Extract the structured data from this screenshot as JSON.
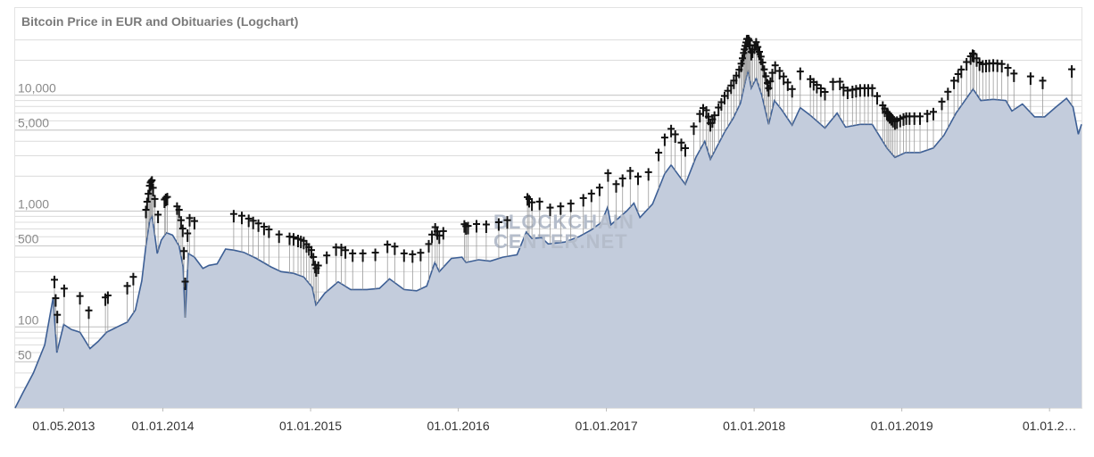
{
  "colors": {
    "line": "#3d5f95",
    "area": "#c3ccdc",
    "grid": "#dcdcdc",
    "cross": "#111111",
    "stem": "#9a9a9a"
  },
  "chart_data": {
    "type": "area",
    "title": "Bitcoin Price in EUR and Obituaries (Logchart)",
    "watermark": [
      "BLOCKCHAIN",
      "CENTER.NET"
    ],
    "yscale": "log",
    "ylim": [
      20,
      35000
    ],
    "yticks": [
      {
        "value": 50,
        "label": "50"
      },
      {
        "value": 100,
        "label": "100"
      },
      {
        "value": 500,
        "label": "500"
      },
      {
        "value": 1000,
        "label": "1,000"
      },
      {
        "value": 5000,
        "label": "5,000"
      },
      {
        "value": 10000,
        "label": "10,000"
      }
    ],
    "xlim": [
      "2013-01-01",
      "2020-03-20"
    ],
    "xticks": [
      {
        "date": "2013-05-01",
        "label": "01.05.2013"
      },
      {
        "date": "2014-01-01",
        "label": "01.01.2014"
      },
      {
        "date": "2015-01-01",
        "label": "01.01.2015"
      },
      {
        "date": "2016-01-01",
        "label": "01.01.2016"
      },
      {
        "date": "2017-01-01",
        "label": "01.01.2017"
      },
      {
        "date": "2018-01-01",
        "label": "01.01.2018"
      },
      {
        "date": "2019-01-01",
        "label": "01.01.2019"
      },
      {
        "date": "2020-01-01",
        "label": "01.01.2…"
      }
    ],
    "series": [
      {
        "points": [
          [
            "2013-01-01",
            20
          ],
          [
            "2013-01-20",
            27
          ],
          [
            "2013-02-15",
            40
          ],
          [
            "2013-03-15",
            70
          ],
          [
            "2013-04-05",
            180
          ],
          [
            "2013-04-09",
            110
          ],
          [
            "2013-04-14",
            60
          ],
          [
            "2013-05-01",
            105
          ],
          [
            "2013-05-20",
            95
          ],
          [
            "2013-06-10",
            90
          ],
          [
            "2013-07-05",
            65
          ],
          [
            "2013-07-25",
            75
          ],
          [
            "2013-08-15",
            90
          ],
          [
            "2013-09-10",
            100
          ],
          [
            "2013-10-05",
            110
          ],
          [
            "2013-10-25",
            140
          ],
          [
            "2013-11-10",
            250
          ],
          [
            "2013-11-20",
            500
          ],
          [
            "2013-11-30",
            850
          ],
          [
            "2013-12-05",
            900
          ],
          [
            "2013-12-10",
            700
          ],
          [
            "2013-12-18",
            430
          ],
          [
            "2013-12-28",
            560
          ],
          [
            "2014-01-10",
            650
          ],
          [
            "2014-01-25",
            620
          ],
          [
            "2014-02-10",
            500
          ],
          [
            "2014-02-20",
            330
          ],
          [
            "2014-02-25",
            120
          ],
          [
            "2014-03-05",
            430
          ],
          [
            "2014-03-20",
            400
          ],
          [
            "2014-04-10",
            320
          ],
          [
            "2014-04-25",
            340
          ],
          [
            "2014-05-15",
            350
          ],
          [
            "2014-06-05",
            470
          ],
          [
            "2014-06-25",
            460
          ],
          [
            "2014-07-20",
            440
          ],
          [
            "2014-08-20",
            390
          ],
          [
            "2014-09-25",
            330
          ],
          [
            "2014-10-20",
            300
          ],
          [
            "2014-11-20",
            290
          ],
          [
            "2014-12-15",
            270
          ],
          [
            "2015-01-05",
            220
          ],
          [
            "2015-01-14",
            155
          ],
          [
            "2015-02-05",
            195
          ],
          [
            "2015-03-10",
            245
          ],
          [
            "2015-04-10",
            210
          ],
          [
            "2015-05-20",
            210
          ],
          [
            "2015-06-20",
            215
          ],
          [
            "2015-07-15",
            260
          ],
          [
            "2015-08-20",
            210
          ],
          [
            "2015-09-20",
            205
          ],
          [
            "2015-10-15",
            225
          ],
          [
            "2015-11-04",
            360
          ],
          [
            "2015-11-15",
            300
          ],
          [
            "2015-12-15",
            390
          ],
          [
            "2016-01-10",
            400
          ],
          [
            "2016-01-20",
            360
          ],
          [
            "2016-02-20",
            380
          ],
          [
            "2016-03-20",
            370
          ],
          [
            "2016-04-20",
            400
          ],
          [
            "2016-05-25",
            420
          ],
          [
            "2016-06-17",
            660
          ],
          [
            "2016-07-01",
            580
          ],
          [
            "2016-07-25",
            590
          ],
          [
            "2016-08-10",
            520
          ],
          [
            "2016-09-20",
            540
          ],
          [
            "2016-10-25",
            600
          ],
          [
            "2016-11-25",
            690
          ],
          [
            "2016-12-20",
            800
          ],
          [
            "2017-01-04",
            1080
          ],
          [
            "2017-01-12",
            760
          ],
          [
            "2017-02-20",
            1000
          ],
          [
            "2017-03-10",
            1170
          ],
          [
            "2017-03-25",
            880
          ],
          [
            "2017-04-25",
            1150
          ],
          [
            "2017-05-25",
            2100
          ],
          [
            "2017-06-10",
            2500
          ],
          [
            "2017-07-15",
            1700
          ],
          [
            "2017-08-10",
            2900
          ],
          [
            "2017-09-01",
            4000
          ],
          [
            "2017-09-15",
            2800
          ],
          [
            "2017-10-20",
            4800
          ],
          [
            "2017-11-10",
            6300
          ],
          [
            "2017-11-28",
            8500
          ],
          [
            "2017-12-10",
            13000
          ],
          [
            "2017-12-17",
            16500
          ],
          [
            "2017-12-25",
            11500
          ],
          [
            "2018-01-06",
            14000
          ],
          [
            "2018-01-20",
            10000
          ],
          [
            "2018-02-06",
            5600
          ],
          [
            "2018-02-20",
            9000
          ],
          [
            "2018-03-10",
            7500
          ],
          [
            "2018-04-05",
            5500
          ],
          [
            "2018-04-25",
            7800
          ],
          [
            "2018-05-20",
            6700
          ],
          [
            "2018-06-25",
            5200
          ],
          [
            "2018-07-25",
            7000
          ],
          [
            "2018-08-15",
            5300
          ],
          [
            "2018-09-20",
            5600
          ],
          [
            "2018-10-20",
            5600
          ],
          [
            "2018-11-25",
            3500
          ],
          [
            "2018-12-15",
            2900
          ],
          [
            "2019-01-10",
            3200
          ],
          [
            "2019-02-15",
            3200
          ],
          [
            "2019-03-20",
            3500
          ],
          [
            "2019-04-15",
            4500
          ],
          [
            "2019-05-15",
            7000
          ],
          [
            "2019-06-26",
            11300
          ],
          [
            "2019-07-15",
            9000
          ],
          [
            "2019-08-15",
            9200
          ],
          [
            "2019-09-15",
            9000
          ],
          [
            "2019-09-30",
            7300
          ],
          [
            "2019-10-26",
            8400
          ],
          [
            "2019-11-25",
            6500
          ],
          [
            "2019-12-20",
            6500
          ],
          [
            "2020-01-15",
            7800
          ],
          [
            "2020-02-12",
            9400
          ],
          [
            "2020-02-28",
            7900
          ],
          [
            "2020-03-12",
            4600
          ],
          [
            "2020-03-20",
            5600
          ]
        ]
      }
    ],
    "obituaries": [
      "2013-04-08",
      "2013-04-11",
      "2013-04-15",
      "2013-05-02",
      "2013-06-10",
      "2013-07-02",
      "2013-08-12",
      "2013-08-18",
      "2013-10-05",
      "2013-10-20",
      "2013-11-20",
      "2013-11-23",
      "2013-11-26",
      "2013-11-29",
      "2013-12-01",
      "2013-12-03",
      "2013-12-05",
      "2013-12-08",
      "2013-12-12",
      "2013-12-20",
      "2014-01-05",
      "2014-01-08",
      "2014-01-12",
      "2014-02-05",
      "2014-02-10",
      "2014-02-15",
      "2014-02-19",
      "2014-02-22",
      "2014-02-25",
      "2014-03-03",
      "2014-03-08",
      "2014-03-20",
      "2014-06-25",
      "2014-07-15",
      "2014-08-01",
      "2014-08-12",
      "2014-08-25",
      "2014-09-08",
      "2014-09-20",
      "2014-10-15",
      "2014-11-10",
      "2014-11-20",
      "2014-12-01",
      "2014-12-08",
      "2014-12-15",
      "2014-12-22",
      "2014-12-28",
      "2015-01-03",
      "2015-01-08",
      "2015-01-12",
      "2015-01-15",
      "2015-01-20",
      "2015-02-10",
      "2015-03-05",
      "2015-03-18",
      "2015-03-28",
      "2015-04-15",
      "2015-05-10",
      "2015-06-10",
      "2015-07-10",
      "2015-07-28",
      "2015-08-20",
      "2015-09-10",
      "2015-09-30",
      "2015-10-20",
      "2015-10-28",
      "2015-11-05",
      "2015-11-10",
      "2015-11-15",
      "2015-11-25",
      "2016-01-16",
      "2016-01-20",
      "2016-01-25",
      "2016-02-15",
      "2016-03-10",
      "2016-04-10",
      "2016-05-01",
      "2016-06-20",
      "2016-06-24",
      "2016-07-01",
      "2016-07-20",
      "2016-08-15",
      "2016-09-10",
      "2016-10-05",
      "2016-11-05",
      "2016-11-25",
      "2016-12-15",
      "2017-01-05",
      "2017-01-25",
      "2017-02-10",
      "2017-03-01",
      "2017-03-20",
      "2017-04-15",
      "2017-05-10",
      "2017-05-25",
      "2017-06-10",
      "2017-06-20",
      "2017-07-05",
      "2017-07-15",
      "2017-08-05",
      "2017-08-20",
      "2017-08-28",
      "2017-09-05",
      "2017-09-10",
      "2017-09-15",
      "2017-09-20",
      "2017-09-25",
      "2017-10-05",
      "2017-10-12",
      "2017-10-20",
      "2017-10-28",
      "2017-11-05",
      "2017-11-12",
      "2017-11-18",
      "2017-11-25",
      "2017-11-30",
      "2017-12-03",
      "2017-12-06",
      "2017-12-08",
      "2017-12-10",
      "2017-12-12",
      "2017-12-14",
      "2017-12-16",
      "2017-12-18",
      "2017-12-20",
      "2017-12-22",
      "2017-12-25",
      "2017-12-28",
      "2018-01-02",
      "2018-01-06",
      "2018-01-10",
      "2018-01-14",
      "2018-01-18",
      "2018-01-22",
      "2018-01-26",
      "2018-01-30",
      "2018-02-03",
      "2018-02-06",
      "2018-02-10",
      "2018-02-15",
      "2018-02-22",
      "2018-03-05",
      "2018-03-15",
      "2018-03-25",
      "2018-04-05",
      "2018-04-25",
      "2018-05-20",
      "2018-05-28",
      "2018-06-05",
      "2018-06-15",
      "2018-06-25",
      "2018-07-15",
      "2018-08-01",
      "2018-08-10",
      "2018-08-20",
      "2018-09-01",
      "2018-09-10",
      "2018-09-20",
      "2018-10-01",
      "2018-10-10",
      "2018-10-20",
      "2018-11-01",
      "2018-11-15",
      "2018-11-20",
      "2018-11-25",
      "2018-11-28",
      "2018-12-02",
      "2018-12-06",
      "2018-12-10",
      "2018-12-15",
      "2018-12-20",
      "2018-12-28",
      "2019-01-05",
      "2019-01-12",
      "2019-01-20",
      "2019-02-01",
      "2019-02-15",
      "2019-03-05",
      "2019-03-20",
      "2019-04-10",
      "2019-04-25",
      "2019-05-10",
      "2019-05-20",
      "2019-05-28",
      "2019-06-10",
      "2019-06-20",
      "2019-06-25",
      "2019-06-28",
      "2019-07-05",
      "2019-07-12",
      "2019-07-20",
      "2019-07-28",
      "2019-08-05",
      "2019-08-15",
      "2019-08-25",
      "2019-09-05",
      "2019-09-20",
      "2019-10-05",
      "2019-11-15",
      "2019-12-15",
      "2020-02-25"
    ]
  }
}
